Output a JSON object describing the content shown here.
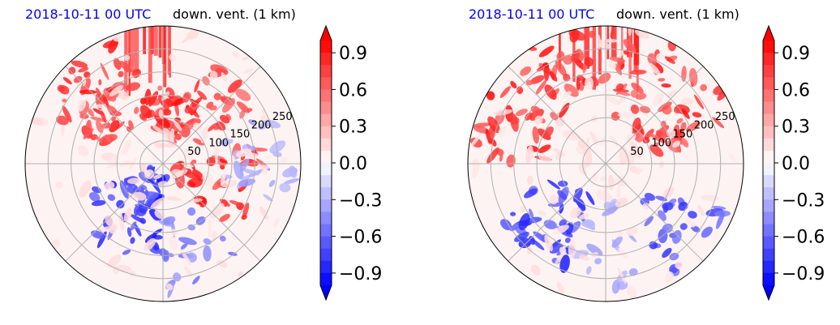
{
  "chart_data": [
    {
      "type": "polar-filled-contour",
      "title_left": "2018-10-11 00 UTC",
      "title_right": "down. vent. (1 km)",
      "radial_ticks": [
        "50",
        "100",
        "150",
        "200",
        "250"
      ],
      "radial_tick_values": [
        50,
        100,
        150,
        200,
        250
      ],
      "rmax": 300,
      "colorbar": {
        "ticks": [
          "0.9",
          "0.6",
          "0.3",
          "0.0",
          "−0.3",
          "−0.6",
          "−0.9"
        ],
        "tick_values": [
          0.9,
          0.6,
          0.3,
          0.0,
          -0.3,
          -0.6,
          -0.9
        ],
        "vmin": -1.0,
        "vmax": 1.0,
        "extend": "both",
        "colormap": "bwr",
        "low_color": "#0000ff",
        "mid_color": "#ffffff",
        "high_color": "#ff0000"
      },
      "pattern": "strong positive (red) band in north-west and centre-north, red cluster to the east; negative (blue) swirl in the south-west"
    },
    {
      "type": "polar-filled-contour",
      "title_left": "2018-10-11 00 UTC",
      "title_right": "down. vent. (1 km)",
      "radial_ticks": [
        "50",
        "100",
        "150",
        "200",
        "250"
      ],
      "radial_tick_values": [
        50,
        100,
        150,
        200,
        250
      ],
      "rmax": 300,
      "colorbar": {
        "ticks": [
          "0.9",
          "0.6",
          "0.3",
          "0.0",
          "−0.3",
          "−0.6",
          "−0.9"
        ],
        "tick_values": [
          0.9,
          0.6,
          0.3,
          0.0,
          -0.3,
          -0.6,
          -0.9
        ],
        "vmin": -1.0,
        "vmax": 1.0,
        "extend": "both",
        "colormap": "bwr",
        "low_color": "#0000ff",
        "mid_color": "#ffffff",
        "high_color": "#ff0000"
      },
      "pattern": "arc of strong positive (red) to the north and west; negative (blue) streaks in the south-west and south-east"
    }
  ]
}
